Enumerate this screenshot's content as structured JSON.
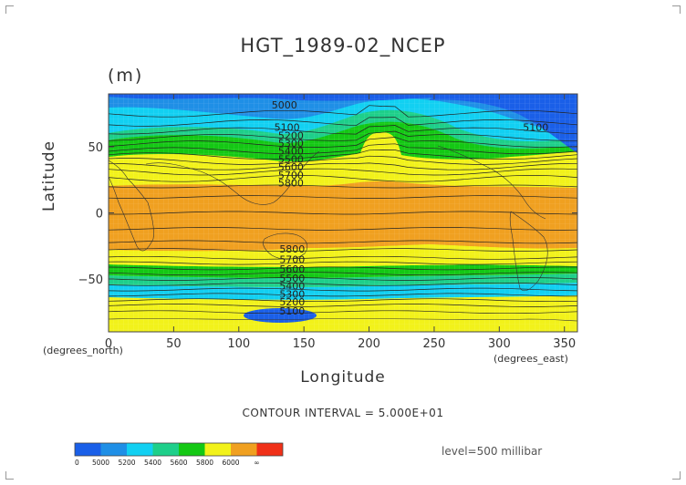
{
  "title": "HGT_1989-02_NCEP",
  "units": "(m)",
  "contour_interval": "CONTOUR INTERVAL = 5.000E+01",
  "level": "level=500 millibar",
  "colorbar": {
    "labels": [
      "0",
      "5000",
      "5200",
      "5400",
      "5600",
      "5800",
      "6000",
      "∞"
    ],
    "colors": [
      "#1a5fe8",
      "#1f8fe6",
      "#12d0f2",
      "#1ecf8a",
      "#14c814",
      "#f2f21a",
      "#f0a020",
      "#f03018"
    ]
  },
  "chart_data": {
    "type": "heatmap",
    "title": "HGT_1989-02_NCEP",
    "xlabel": "Longitude",
    "ylabel": "Latitude",
    "x_unit": "(degrees_east)",
    "y_unit": "(degrees_north)",
    "units": "(m)",
    "xlim": [
      0,
      360
    ],
    "ylim": [
      -90,
      90
    ],
    "xticks": [
      0,
      50,
      100,
      150,
      200,
      250,
      300,
      350
    ],
    "yticks": [
      50,
      0,
      -50
    ],
    "contour_labels": [
      {
        "value": "5000",
        "lon": 135,
        "lat": 79
      },
      {
        "value": "5100",
        "lon": 137,
        "lat": 62
      },
      {
        "value": "5100",
        "lon": 328,
        "lat": 62
      },
      {
        "value": "5200",
        "lon": 140,
        "lat": 56
      },
      {
        "value": "5300",
        "lon": 140,
        "lat": 50
      },
      {
        "value": "5400",
        "lon": 140,
        "lat": 44
      },
      {
        "value": "5500",
        "lon": 140,
        "lat": 38
      },
      {
        "value": "5600",
        "lon": 140,
        "lat": 32
      },
      {
        "value": "5700",
        "lon": 140,
        "lat": 26
      },
      {
        "value": "5800",
        "lon": 140,
        "lat": 20
      },
      {
        "value": "5800",
        "lon": 141,
        "lat": -30
      },
      {
        "value": "5700",
        "lon": 141,
        "lat": -38
      },
      {
        "value": "5600",
        "lon": 141,
        "lat": -45
      },
      {
        "value": "5500",
        "lon": 141,
        "lat": -52
      },
      {
        "value": "5400",
        "lon": 141,
        "lat": -58
      },
      {
        "value": "5300",
        "lon": 141,
        "lat": -64
      },
      {
        "value": "5200",
        "lon": 141,
        "lat": -70
      },
      {
        "value": "5100",
        "lon": 141,
        "lat": -77
      }
    ]
  }
}
